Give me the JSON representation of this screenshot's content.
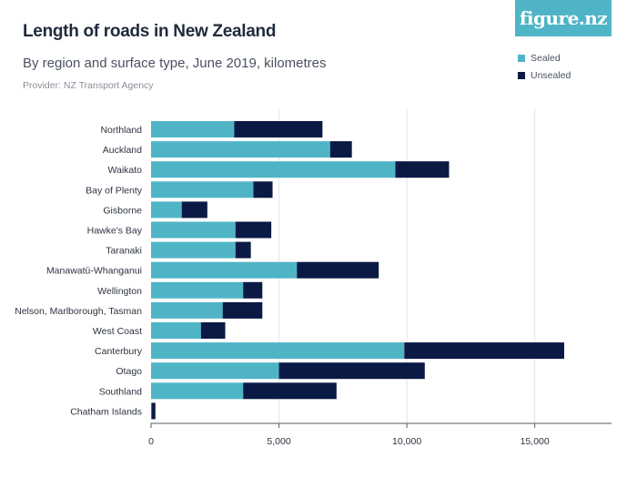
{
  "header": {
    "title": "Length of roads in New Zealand",
    "subtitle": "By region and surface type, June 2019, kilometres",
    "provider": "Provider: NZ Transport Agency",
    "logo": "figure.nz"
  },
  "colors": {
    "sealed": "#4fb5c6",
    "unsealed": "#0b1a45",
    "grid": "#e3e5e8"
  },
  "chart_data": {
    "type": "bar",
    "orientation": "horizontal",
    "stacked": true,
    "categories": [
      "Northland",
      "Auckland",
      "Waikato",
      "Bay of Plenty",
      "Gisborne",
      "Hawke's Bay",
      "Taranaki",
      "Manawatū-Whanganui",
      "Wellington",
      "Nelson, Marlborough, Tasman",
      "West Coast",
      "Canterbury",
      "Otago",
      "Southland",
      "Chatham Islands"
    ],
    "series": [
      {
        "name": "Sealed",
        "values": [
          3250,
          7000,
          9550,
          4000,
          1200,
          3300,
          3300,
          5700,
          3600,
          2800,
          1950,
          9900,
          5000,
          3600,
          20
        ]
      },
      {
        "name": "Unsealed",
        "values": [
          3450,
          850,
          2100,
          750,
          1000,
          1400,
          600,
          3200,
          750,
          1550,
          950,
          6250,
          5700,
          3650,
          150
        ]
      }
    ],
    "xlim": [
      0,
      18000
    ],
    "xticks": [
      0,
      5000,
      10000,
      15000
    ],
    "xtick_labels": [
      "0",
      "5,000",
      "10,000",
      "15,000"
    ],
    "grid": true,
    "legend": "top-right"
  }
}
